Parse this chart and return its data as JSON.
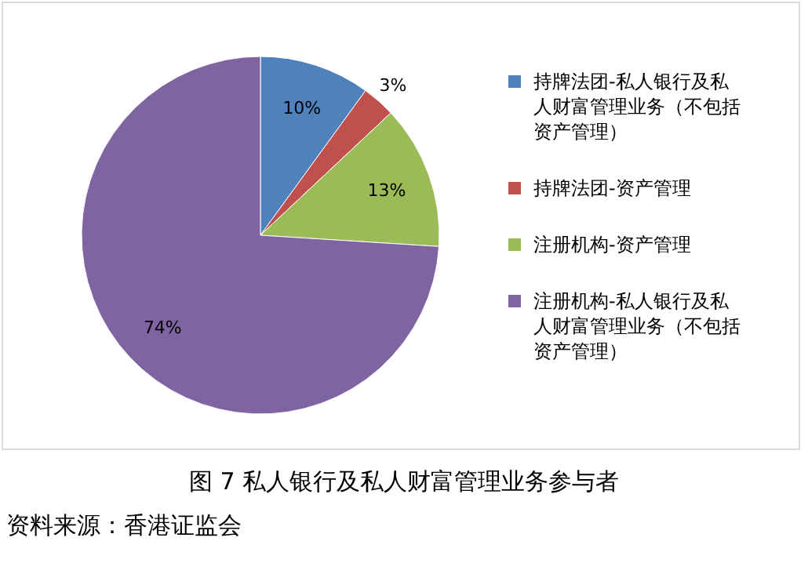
{
  "chart_data": {
    "type": "pie",
    "title": "图 7 私人银行及私人财富管理业务参与者",
    "categories": [
      "持牌法团-私人银行及私人财富管理业务（不包括资产管理）",
      "持牌法团-资产管理",
      "注册机构-资产管理",
      "注册机构-私人银行及私人财富管理业务（不包括资产管理）"
    ],
    "values": [
      10,
      3,
      13,
      74
    ],
    "colors": [
      "#4f81bd",
      "#c0504d",
      "#9bbb59",
      "#8064a2"
    ],
    "value_labels": [
      "10%",
      "3%",
      "13%",
      "74%"
    ],
    "legend": "right",
    "annotations": [
      "资料来源：香港证监会"
    ]
  }
}
